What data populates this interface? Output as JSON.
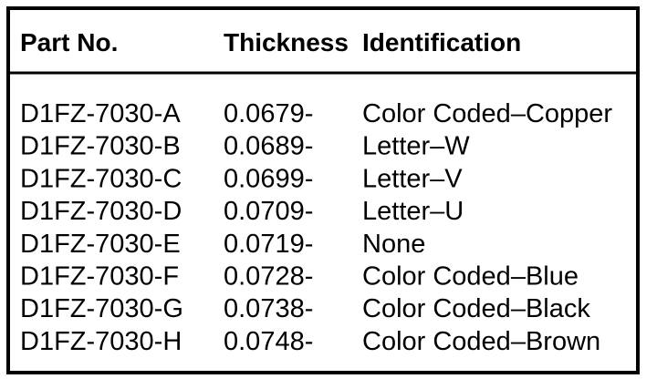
{
  "table": {
    "headers": [
      "Part No.",
      "Thickness",
      "Identification"
    ],
    "rows": [
      [
        "D1FZ-7030-A",
        "0.0679-",
        "Color Coded–Copper"
      ],
      [
        "D1FZ-7030-B",
        "0.0689-",
        "Letter–W"
      ],
      [
        "D1FZ-7030-C",
        "0.0699-",
        "Letter–V"
      ],
      [
        "D1FZ-7030-D",
        "0.0709-",
        "Letter–U"
      ],
      [
        "D1FZ-7030-E",
        "0.0719-",
        "None"
      ],
      [
        "D1FZ-7030-F",
        "0.0728-",
        "Color Coded–Blue"
      ],
      [
        "D1FZ-7030-G",
        "0.0738-",
        "Color Coded–Black"
      ],
      [
        "D1FZ-7030-H",
        "0.0748-",
        "Color Coded–Brown"
      ]
    ]
  }
}
